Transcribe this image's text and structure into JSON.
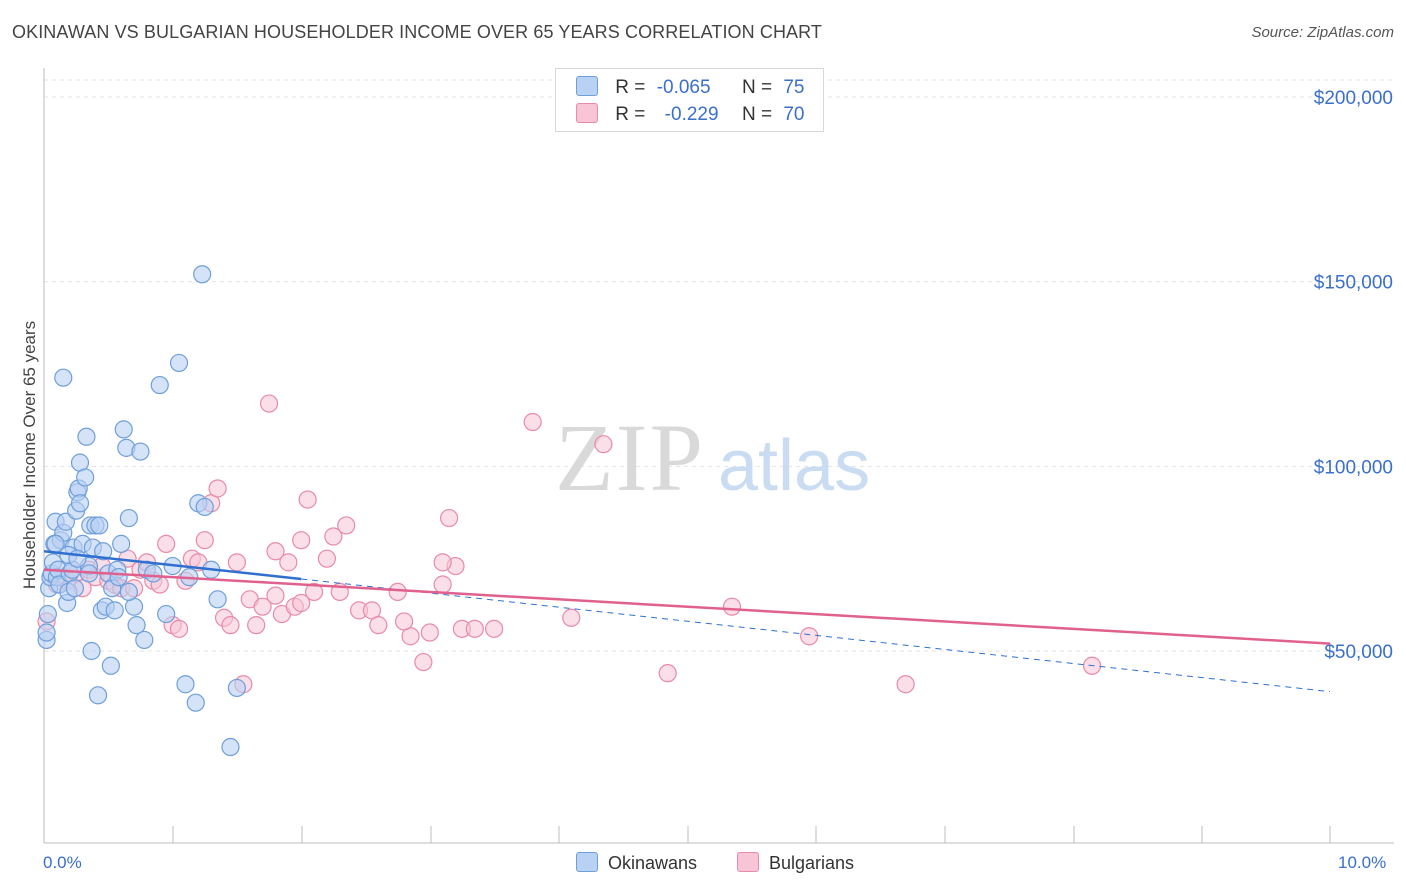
{
  "header": {
    "title": "OKINAWAN VS BULGARIAN HOUSEHOLDER INCOME OVER 65 YEARS CORRELATION CHART",
    "source": "Source: ZipAtlas.com"
  },
  "watermark": {
    "zip": "ZIP",
    "atlas": "atlas"
  },
  "legend": {
    "r_label": "R =",
    "n_label": "N =",
    "rows": [
      {
        "r": "-0.065",
        "n": "75"
      },
      {
        "r": "-0.229",
        "n": "70"
      }
    ]
  },
  "bottom_legend": {
    "series1": "Okinawans",
    "series2": "Bulgarians"
  },
  "colors": {
    "blue_fill": "#b9d1f3",
    "blue_stroke": "#6f9fdb",
    "blue_line": "#2f6fd0",
    "pink_fill": "#f7c5d5",
    "pink_stroke": "#e88aa8",
    "pink_line": "#e0608e",
    "accent_text": "#3a6fcc"
  },
  "chart_data": {
    "type": "scatter",
    "title": "OKINAWAN VS BULGARIAN HOUSEHOLDER INCOME OVER 65 YEARS CORRELATION CHART",
    "xlabel": "",
    "ylabel": "Householder Income Over 65 years",
    "xlim": [
      0,
      10.5
    ],
    "ylim": [
      0,
      210000
    ],
    "x_tick_labels": [
      "0.0%",
      "10.0%"
    ],
    "y_ticks": [
      50000,
      100000,
      150000,
      200000
    ],
    "y_tick_labels": [
      "$50,000",
      "$100,000",
      "$150,000",
      "$200,000"
    ],
    "series": [
      {
        "name": "Okinawans",
        "r": -0.065,
        "n": 75,
        "trend": {
          "x0": 0.0,
          "y0": 77000,
          "x1": 2.0,
          "y1": 69500,
          "dashed_to_x": 10.0,
          "dashed_to_y": 39000
        },
        "points": [
          [
            0.02,
            53000
          ],
          [
            0.02,
            55000
          ],
          [
            0.03,
            60000
          ],
          [
            0.04,
            67000
          ],
          [
            0.05,
            70000
          ],
          [
            0.06,
            71000
          ],
          [
            0.07,
            74000
          ],
          [
            0.08,
            79000
          ],
          [
            0.09,
            85000
          ],
          [
            0.1,
            70000
          ],
          [
            0.11,
            72000
          ],
          [
            0.12,
            68000
          ],
          [
            0.13,
            80000
          ],
          [
            0.15,
            82000
          ],
          [
            0.17,
            85000
          ],
          [
            0.18,
            63000
          ],
          [
            0.19,
            66000
          ],
          [
            0.2,
            71000
          ],
          [
            0.22,
            72000
          ],
          [
            0.23,
            78000
          ],
          [
            0.24,
            67000
          ],
          [
            0.25,
            88000
          ],
          [
            0.26,
            93000
          ],
          [
            0.27,
            94000
          ],
          [
            0.28,
            101000
          ],
          [
            0.3,
            79000
          ],
          [
            0.32,
            97000
          ],
          [
            0.33,
            108000
          ],
          [
            0.35,
            73000
          ],
          [
            0.36,
            84000
          ],
          [
            0.37,
            50000
          ],
          [
            0.38,
            78000
          ],
          [
            0.4,
            84000
          ],
          [
            0.42,
            38000
          ],
          [
            0.43,
            84000
          ],
          [
            0.45,
            61000
          ],
          [
            0.46,
            77000
          ],
          [
            0.48,
            62000
          ],
          [
            0.5,
            71000
          ],
          [
            0.52,
            46000
          ],
          [
            0.53,
            67000
          ],
          [
            0.55,
            61000
          ],
          [
            0.57,
            72000
          ],
          [
            0.58,
            70000
          ],
          [
            0.6,
            79000
          ],
          [
            0.62,
            110000
          ],
          [
            0.64,
            105000
          ],
          [
            0.66,
            86000
          ],
          [
            0.7,
            62000
          ],
          [
            0.72,
            57000
          ],
          [
            0.75,
            104000
          ],
          [
            0.78,
            53000
          ],
          [
            0.8,
            72000
          ],
          [
            0.85,
            71000
          ],
          [
            0.9,
            122000
          ],
          [
            0.95,
            60000
          ],
          [
            1.0,
            73000
          ],
          [
            1.05,
            128000
          ],
          [
            1.1,
            41000
          ],
          [
            1.13,
            70000
          ],
          [
            1.18,
            36000
          ],
          [
            1.2,
            90000
          ],
          [
            1.23,
            152000
          ],
          [
            1.25,
            89000
          ],
          [
            1.3,
            72000
          ],
          [
            1.35,
            64000
          ],
          [
            1.45,
            24000
          ],
          [
            1.5,
            40000
          ],
          [
            0.15,
            124000
          ],
          [
            0.28,
            90000
          ],
          [
            0.19,
            76000
          ],
          [
            0.66,
            66000
          ],
          [
            0.35,
            71000
          ],
          [
            0.09,
            79000
          ],
          [
            0.26,
            75000
          ]
        ]
      },
      {
        "name": "Bulgarians",
        "r": -0.229,
        "n": 70,
        "trend": {
          "x0": 0.0,
          "y0": 72000,
          "x1": 10.0,
          "y1": 52000
        },
        "points": [
          [
            0.02,
            58000
          ],
          [
            0.1,
            68000
          ],
          [
            0.18,
            69000
          ],
          [
            0.25,
            71000
          ],
          [
            0.3,
            67000
          ],
          [
            0.35,
            72000
          ],
          [
            0.4,
            70000
          ],
          [
            0.45,
            73000
          ],
          [
            0.5,
            69000
          ],
          [
            0.55,
            68000
          ],
          [
            0.6,
            67000
          ],
          [
            0.65,
            75000
          ],
          [
            0.7,
            67000
          ],
          [
            0.75,
            72000
          ],
          [
            0.8,
            74000
          ],
          [
            0.85,
            69000
          ],
          [
            0.9,
            68000
          ],
          [
            0.95,
            79000
          ],
          [
            1.0,
            57000
          ],
          [
            1.05,
            56000
          ],
          [
            1.1,
            69000
          ],
          [
            1.15,
            75000
          ],
          [
            1.2,
            74000
          ],
          [
            1.25,
            80000
          ],
          [
            1.3,
            90000
          ],
          [
            1.35,
            94000
          ],
          [
            1.4,
            59000
          ],
          [
            1.45,
            57000
          ],
          [
            1.5,
            74000
          ],
          [
            1.55,
            41000
          ],
          [
            1.6,
            64000
          ],
          [
            1.65,
            57000
          ],
          [
            1.7,
            62000
          ],
          [
            1.75,
            117000
          ],
          [
            1.8,
            65000
          ],
          [
            1.85,
            60000
          ],
          [
            1.9,
            74000
          ],
          [
            1.95,
            62000
          ],
          [
            2.0,
            80000
          ],
          [
            2.05,
            91000
          ],
          [
            2.1,
            66000
          ],
          [
            2.2,
            75000
          ],
          [
            2.25,
            81000
          ],
          [
            2.3,
            66000
          ],
          [
            2.35,
            84000
          ],
          [
            2.45,
            61000
          ],
          [
            2.55,
            61000
          ],
          [
            2.6,
            57000
          ],
          [
            2.75,
            66000
          ],
          [
            2.85,
            54000
          ],
          [
            2.95,
            47000
          ],
          [
            3.0,
            55000
          ],
          [
            3.15,
            86000
          ],
          [
            3.2,
            73000
          ],
          [
            3.25,
            56000
          ],
          [
            3.35,
            56000
          ],
          [
            3.5,
            56000
          ],
          [
            3.8,
            112000
          ],
          [
            4.1,
            59000
          ],
          [
            4.35,
            106000
          ],
          [
            4.85,
            44000
          ],
          [
            5.35,
            62000
          ],
          [
            5.95,
            54000
          ],
          [
            6.7,
            41000
          ],
          [
            8.15,
            46000
          ],
          [
            3.1,
            74000
          ],
          [
            1.8,
            77000
          ],
          [
            2.8,
            58000
          ],
          [
            3.1,
            68000
          ],
          [
            2.0,
            63000
          ]
        ]
      }
    ]
  }
}
